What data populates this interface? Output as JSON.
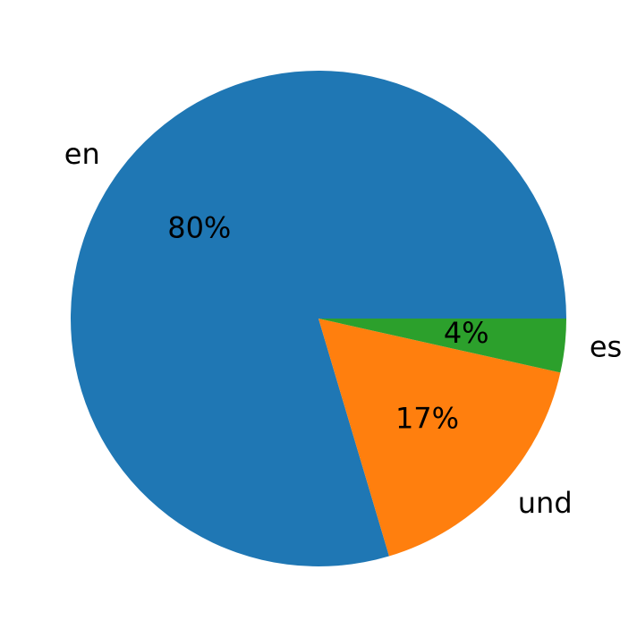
{
  "chart_data": {
    "type": "pie",
    "categories": [
      "en",
      "und",
      "es"
    ],
    "values": [
      79.6,
      16.9,
      3.5
    ],
    "value_labels": [
      "80%",
      "17%",
      "4%"
    ],
    "colors": [
      "#1f77b4",
      "#ff7f0e",
      "#2ca02c"
    ],
    "start_angle": 0,
    "counterclockwise": true
  }
}
